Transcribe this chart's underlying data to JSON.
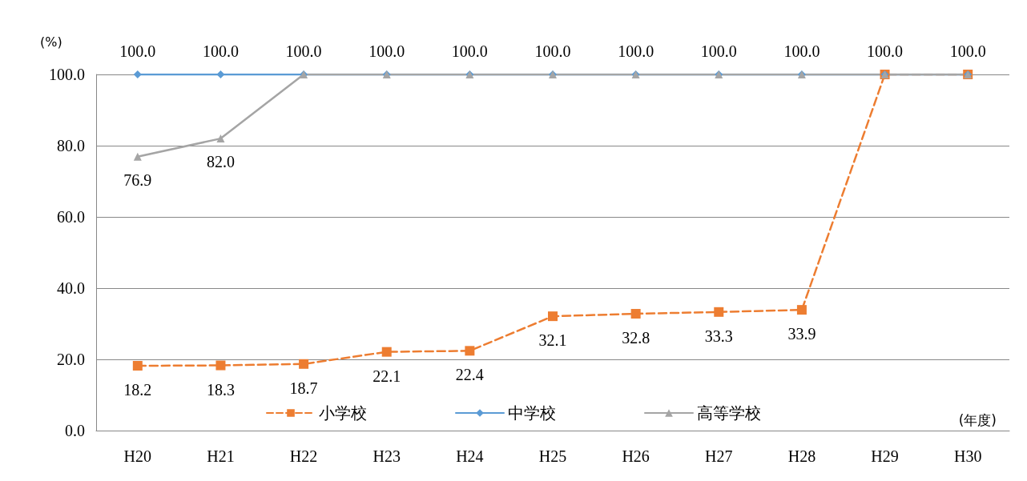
{
  "chart_data": {
    "type": "line",
    "ylabel": "(%)",
    "xlabel": "(年度)",
    "categories": [
      "H20",
      "H21",
      "H22",
      "H23",
      "H24",
      "H25",
      "H26",
      "H27",
      "H28",
      "H29",
      "H30"
    ],
    "series": [
      {
        "name": "小学校",
        "color": "#ed7d31",
        "marker": "square",
        "line_style": "dashed",
        "values": [
          18.2,
          18.3,
          18.7,
          22.1,
          22.4,
          32.1,
          32.8,
          33.3,
          33.9,
          100,
          100
        ],
        "value_labels": [
          "18.2",
          "18.3",
          "18.7",
          "22.1",
          "22.4",
          "32.1",
          "32.8",
          "33.3",
          "33.9",
          null,
          null
        ]
      },
      {
        "name": "中学校",
        "color": "#5b9bd5",
        "marker": "diamond",
        "line_style": "solid",
        "values": [
          100,
          100,
          100,
          100,
          100,
          100,
          100,
          100,
          100,
          100,
          100
        ],
        "value_labels": [
          "100.0",
          "100.0",
          "100.0",
          "100.0",
          "100.0",
          "100.0",
          "100.0",
          "100.0",
          "100.0",
          "100.0",
          "100.0"
        ]
      },
      {
        "name": "高等学校",
        "color": "#a5a5a5",
        "marker": "triangle",
        "line_style": "solid",
        "values": [
          76.9,
          82.0,
          100,
          100,
          100,
          100,
          100,
          100,
          100,
          100,
          100
        ],
        "value_labels": [
          "76.9",
          "82.0",
          null,
          null,
          null,
          null,
          null,
          null,
          null,
          null,
          null
        ]
      }
    ],
    "ylim": [
      0,
      100
    ],
    "yticks": [
      {
        "value": 0,
        "label": "0.0"
      },
      {
        "value": 20,
        "label": "20.0"
      },
      {
        "value": 40,
        "label": "40.0"
      },
      {
        "value": 60,
        "label": "60.0"
      },
      {
        "value": 80,
        "label": "80.0"
      },
      {
        "value": 100,
        "label": "100.0"
      }
    ],
    "grid": "y",
    "legend": "bottom"
  }
}
